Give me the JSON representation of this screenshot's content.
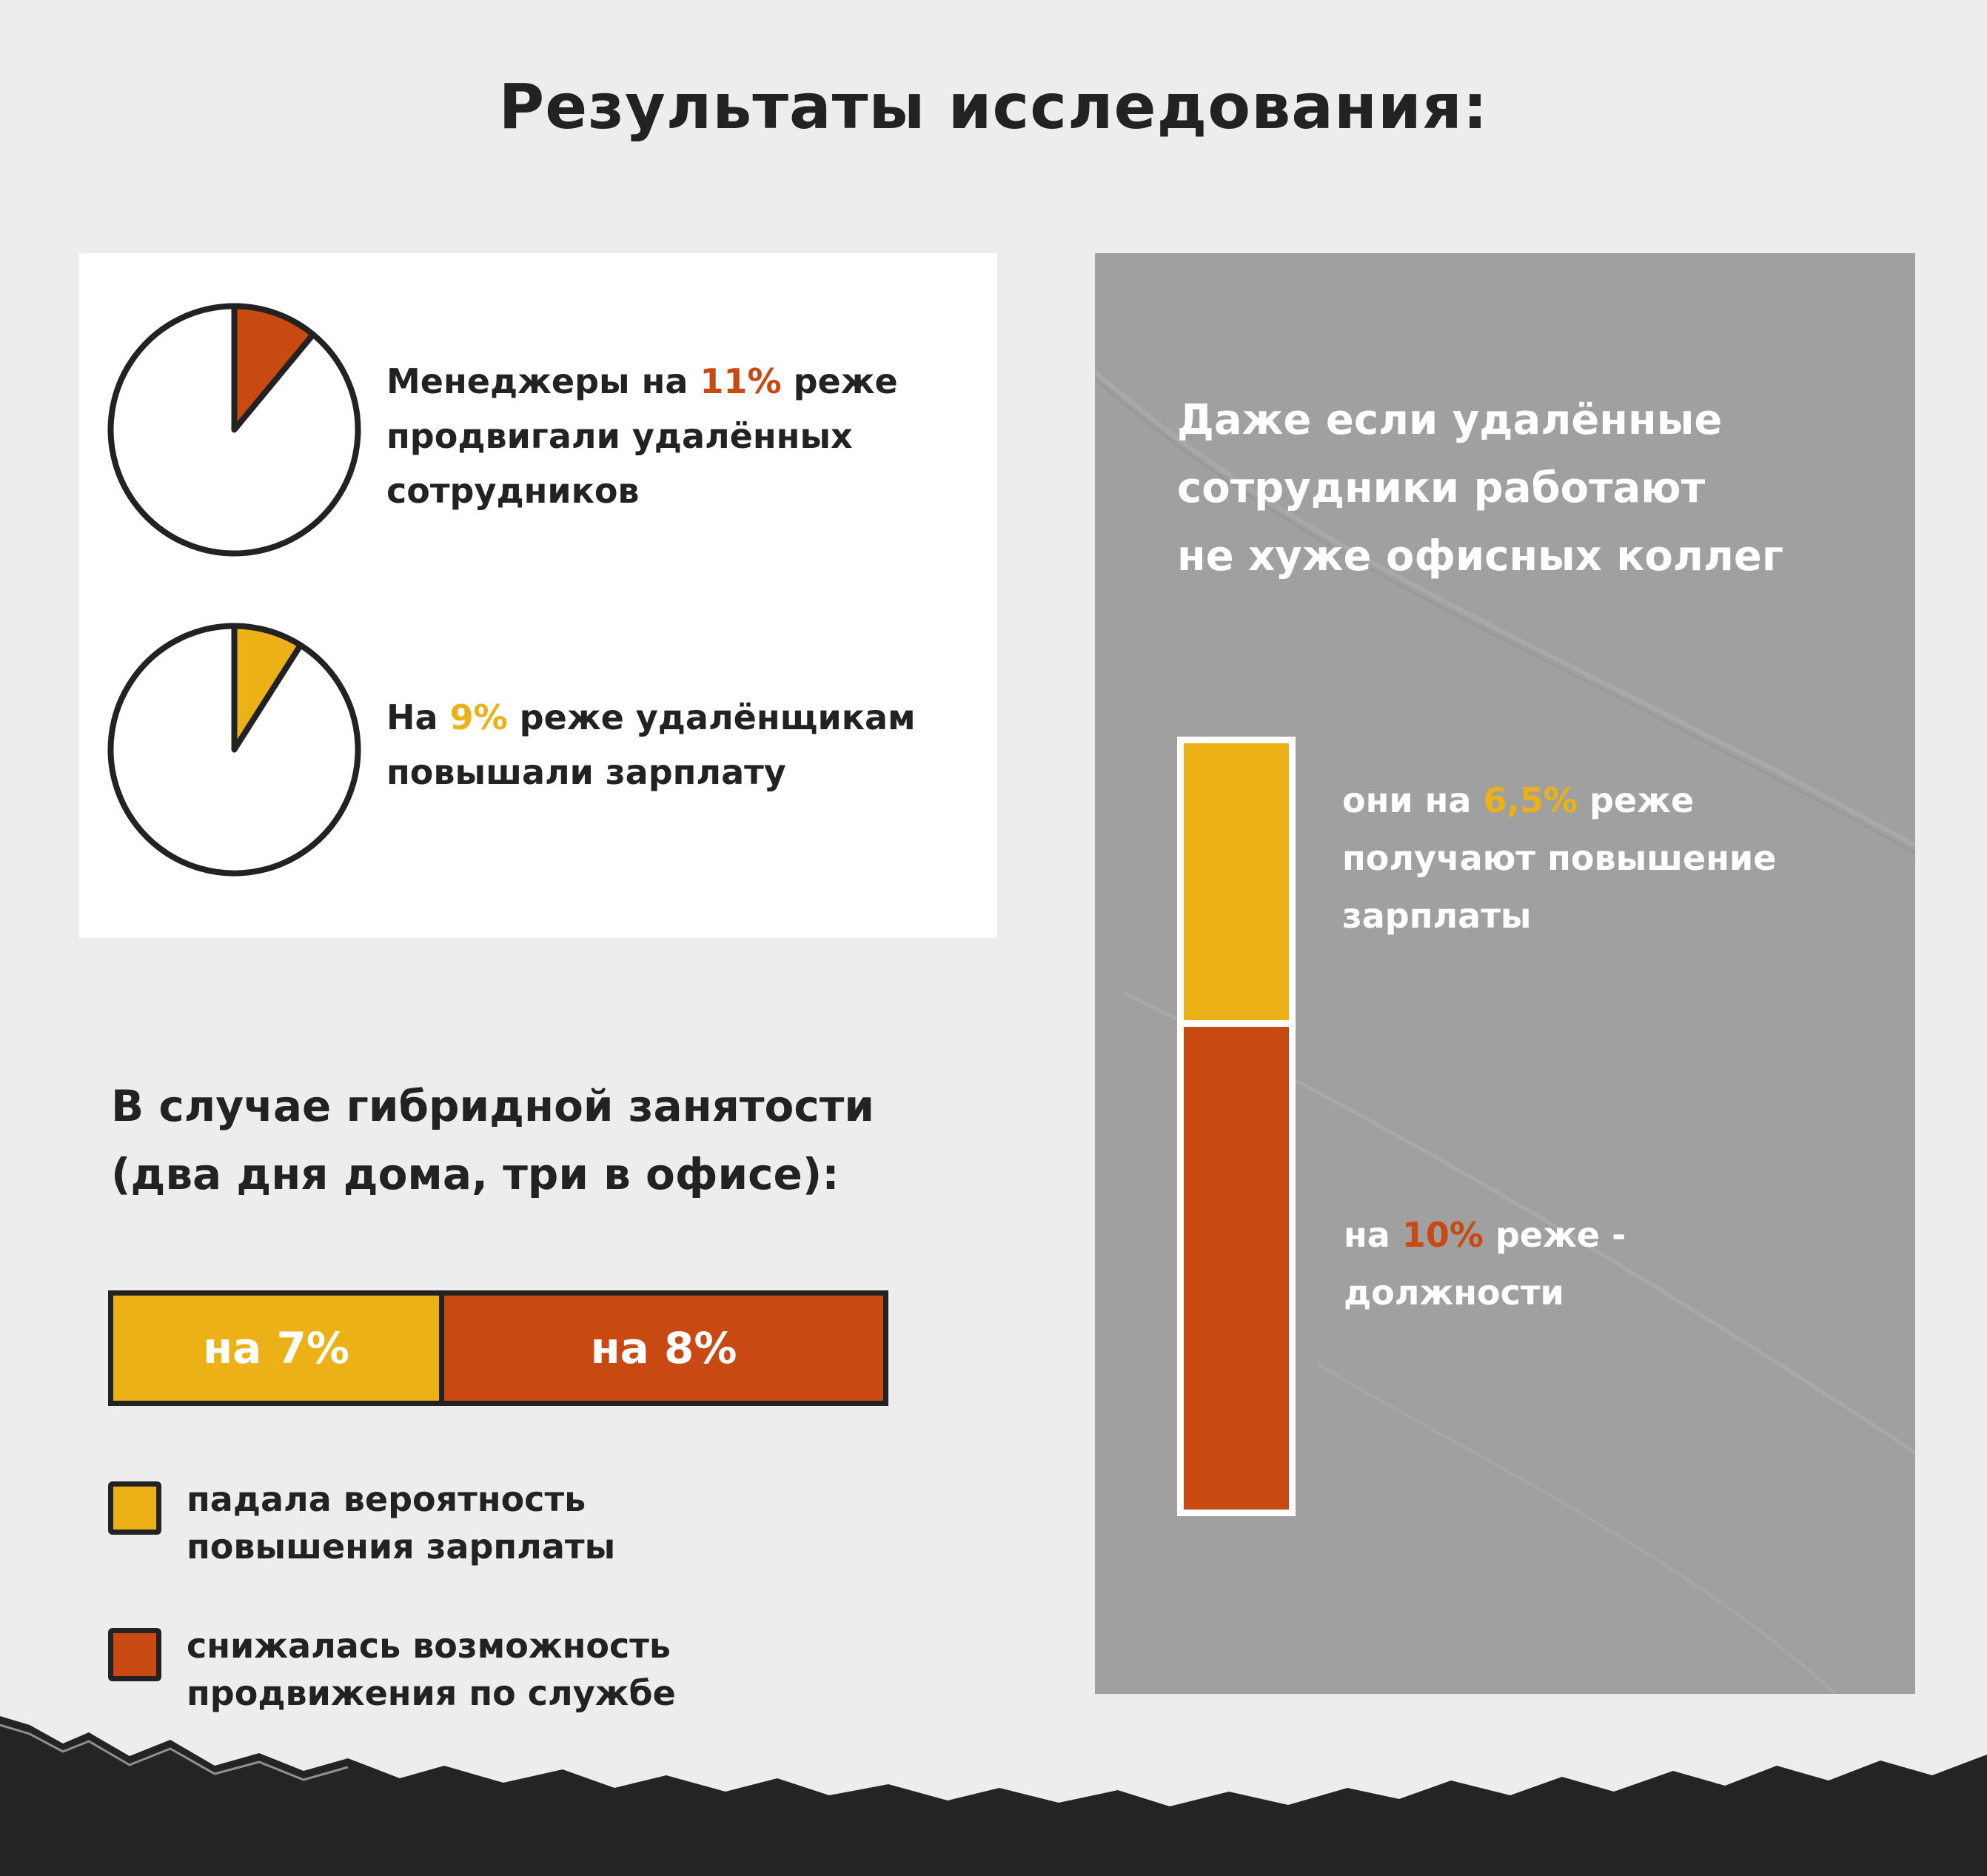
{
  "title": "Результаты исследования:",
  "colors": {
    "orange": "#c84a12",
    "yellow": "#ebb117",
    "dark": "#222222",
    "grey_panel": "#a0a0a0",
    "white": "#ffffff"
  },
  "stat_1": {
    "pre": "Менеджеры на ",
    "value": "11%",
    "post": " реже",
    "line2": "продвигали удалённых",
    "line3": "сотрудников"
  },
  "stat_2": {
    "pre": "На ",
    "value": "9%",
    "post": " реже удалёнщикам",
    "line2": "повышали зарплату"
  },
  "hybrid": {
    "title_line1": "В случае гибридной занятости",
    "title_line2": "(два дня дома, три в офисе):",
    "bar_label_1": "на 7%",
    "bar_label_2": "на 8%",
    "legend_1_line1": "падала вероятность",
    "legend_1_line2": "повышения зарплаты",
    "legend_2_line1": "снижалась возможность",
    "legend_2_line2": "продвижения по службе"
  },
  "remote": {
    "headline_line1": "Даже если удалённые",
    "headline_line2": "сотрудники работают",
    "headline_line3": "не хуже офисных коллег",
    "seg1_pre": "они на ",
    "seg1_value": "6,5%",
    "seg1_post": " реже",
    "seg1_line2": "получают повышение",
    "seg1_line3": "зарплаты",
    "seg2_pre": "на ",
    "seg2_value": "10%",
    "seg2_post": " реже -",
    "seg2_line2": "должности"
  },
  "chart_data": [
    {
      "type": "pie",
      "slices": [
        {
          "value": 11,
          "color": "#c84a12"
        },
        {
          "value": 89,
          "color": "#ffffff"
        }
      ]
    },
    {
      "type": "pie",
      "slices": [
        {
          "value": 9,
          "color": "#ebb117"
        },
        {
          "value": 91,
          "color": "#ffffff"
        }
      ]
    },
    {
      "type": "bar",
      "orientation": "horizontal",
      "stacked": true,
      "categories": [
        "на 7%",
        "на 8%"
      ],
      "values": [
        7,
        8
      ],
      "colors": [
        "#ebb117",
        "#c84a12"
      ]
    },
    {
      "type": "bar",
      "orientation": "vertical",
      "stacked": true,
      "categories": [
        "6,5%",
        "10%"
      ],
      "values": [
        6.5,
        10
      ],
      "colors": [
        "#ebb117",
        "#c84a12"
      ]
    }
  ]
}
